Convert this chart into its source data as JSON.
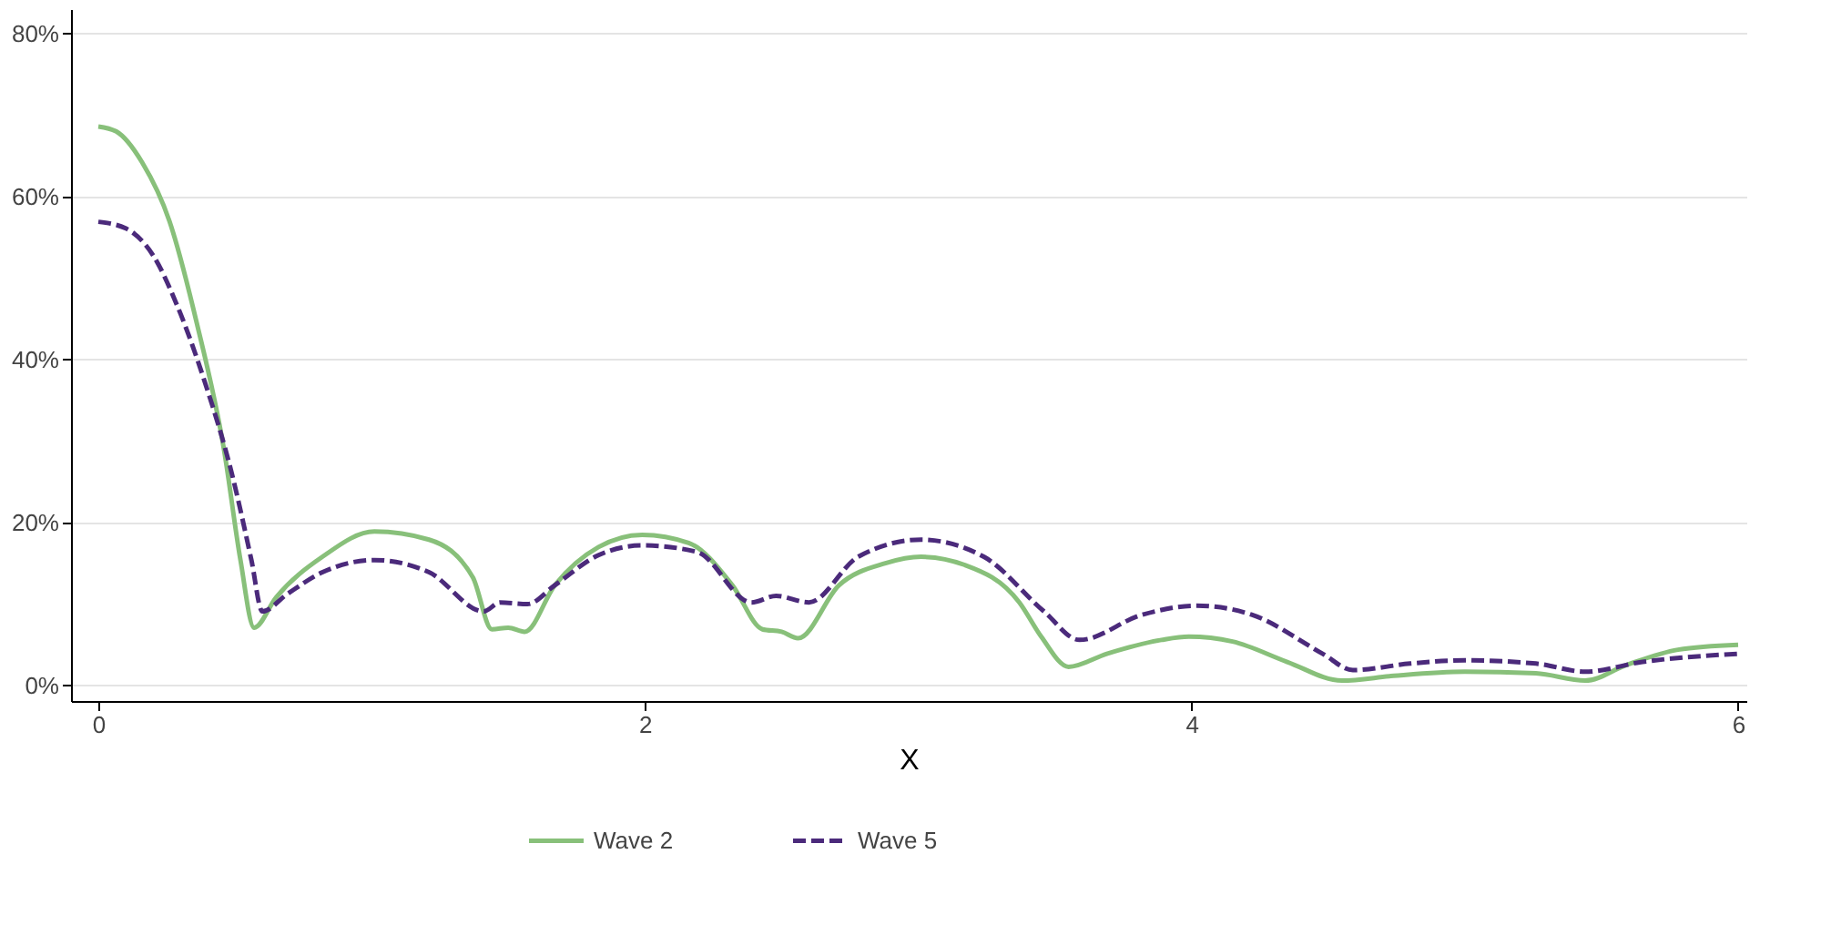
{
  "chart_data": {
    "type": "line",
    "xlabel": "X",
    "xlim": [
      -0.1,
      6.03
    ],
    "ylim": [
      -1.9,
      83
    ],
    "xticks": [
      0,
      2,
      4,
      6
    ],
    "yticks": [
      {
        "value": 0,
        "label": "0%"
      },
      {
        "value": 20,
        "label": "20%"
      },
      {
        "value": 40,
        "label": "40%"
      },
      {
        "value": 60,
        "label": "60%"
      },
      {
        "value": 80,
        "label": "80%"
      }
    ],
    "grid": "y",
    "legend": "bottom",
    "series": [
      {
        "name": "Wave 2",
        "color": "#88c07a",
        "line_style": "solid",
        "x": [
          0,
          0.065,
          0.16,
          0.26,
          0.36,
          0.46,
          0.52,
          0.57,
          0.65,
          0.82,
          1.01,
          1.21,
          1.37,
          1.44,
          1.5,
          1.56,
          1.67,
          1.83,
          1.99,
          2.16,
          2.32,
          2.43,
          2.5,
          2.56,
          2.71,
          2.88,
          3.01,
          3.17,
          3.37,
          3.45,
          3.55,
          3.69,
          3.89,
          3.99,
          4.15,
          4.35,
          4.55,
          4.74,
          5.0,
          5.26,
          5.44,
          5.59,
          5.78,
          6
        ],
        "values": [
          68.6,
          68,
          64.2,
          57,
          44.5,
          28.9,
          15.4,
          7.1,
          10.8,
          15.8,
          18.9,
          17.9,
          13.3,
          6.9,
          7.1,
          6.6,
          12.3,
          17.0,
          18.5,
          17.5,
          12.3,
          6.9,
          6.6,
          5.8,
          12.3,
          15.0,
          15.8,
          14.8,
          10.2,
          6.0,
          2.3,
          3.9,
          5.6,
          6.0,
          5.4,
          2.9,
          0.6,
          1.2,
          1.7,
          1.5,
          0.6,
          2.5,
          4.4,
          5.0
        ]
      },
      {
        "name": "Wave 5",
        "color": "#4b2a7b",
        "line_style": "dashed",
        "x": [
          0,
          0.1,
          0.2,
          0.29,
          0.39,
          0.49,
          0.56,
          0.6,
          0.69,
          0.82,
          1.01,
          1.21,
          1.41,
          1.47,
          1.57,
          1.67,
          1.83,
          1.99,
          2.19,
          2.39,
          2.48,
          2.6,
          2.78,
          3.01,
          3.24,
          3.46,
          3.59,
          3.82,
          4.02,
          4.22,
          4.48,
          4.59,
          4.8,
          5.0,
          5.26,
          5.44,
          5.65,
          6
        ],
        "values": [
          56.9,
          56.1,
          52.8,
          46.5,
          37.2,
          25.8,
          15.4,
          9.1,
          11.2,
          13.9,
          15.4,
          13.9,
          9.1,
          10.2,
          10.0,
          12.3,
          16.0,
          17.2,
          16.4,
          10.2,
          11.0,
          10.2,
          15.8,
          17.9,
          15.8,
          9.1,
          5.6,
          8.7,
          9.8,
          8.7,
          3.9,
          1.9,
          2.7,
          3.1,
          2.7,
          1.7,
          2.9,
          3.9
        ]
      }
    ]
  }
}
